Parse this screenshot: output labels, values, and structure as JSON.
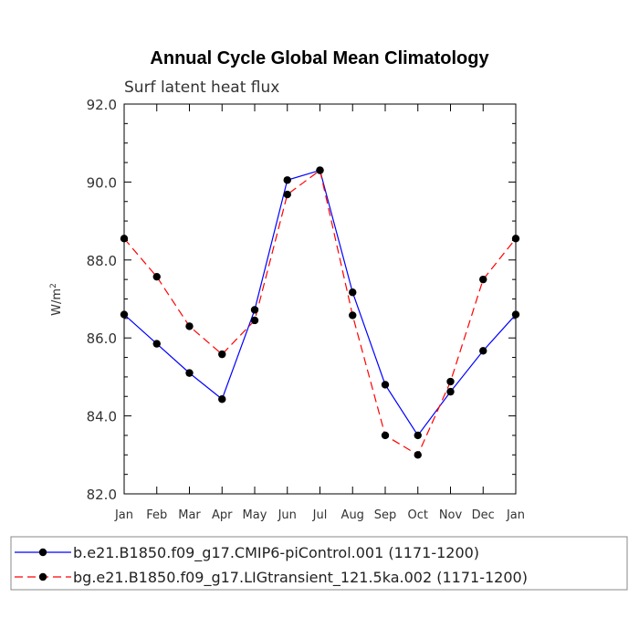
{
  "chart_data": {
    "type": "line",
    "title": "Annual Cycle Global Mean Climatology",
    "subtitle": "Surf latent heat flux",
    "ylabel": "W/m",
    "ylabel_sup": "2",
    "ylim": [
      82.0,
      92.0
    ],
    "yticks": [
      "82.0",
      "84.0",
      "86.0",
      "88.0",
      "90.0",
      "92.0"
    ],
    "categories": [
      "Jan",
      "Feb",
      "Mar",
      "Apr",
      "May",
      "Jun",
      "Jul",
      "Aug",
      "Sep",
      "Oct",
      "Nov",
      "Dec",
      "Jan"
    ],
    "series": [
      {
        "name": "b.e21.B1850.f09_g17.CMIP6-piControl.001 (1171-1200)",
        "color": "#0000ff",
        "dash": "solid",
        "values": [
          86.6,
          85.85,
          85.1,
          84.43,
          86.72,
          90.05,
          90.3,
          87.17,
          84.8,
          83.5,
          84.62,
          85.67,
          86.6
        ]
      },
      {
        "name": "bg.e21.B1850.f09_g17.LIGtransient_121.5ka.002 (1171-1200)",
        "color": "#ff0000",
        "dash": "dashed",
        "values": [
          88.55,
          87.57,
          86.3,
          85.58,
          86.45,
          89.68,
          90.3,
          86.58,
          83.5,
          83.0,
          84.88,
          87.5,
          88.55
        ]
      }
    ],
    "grid": false,
    "legend_position": "bottom"
  }
}
